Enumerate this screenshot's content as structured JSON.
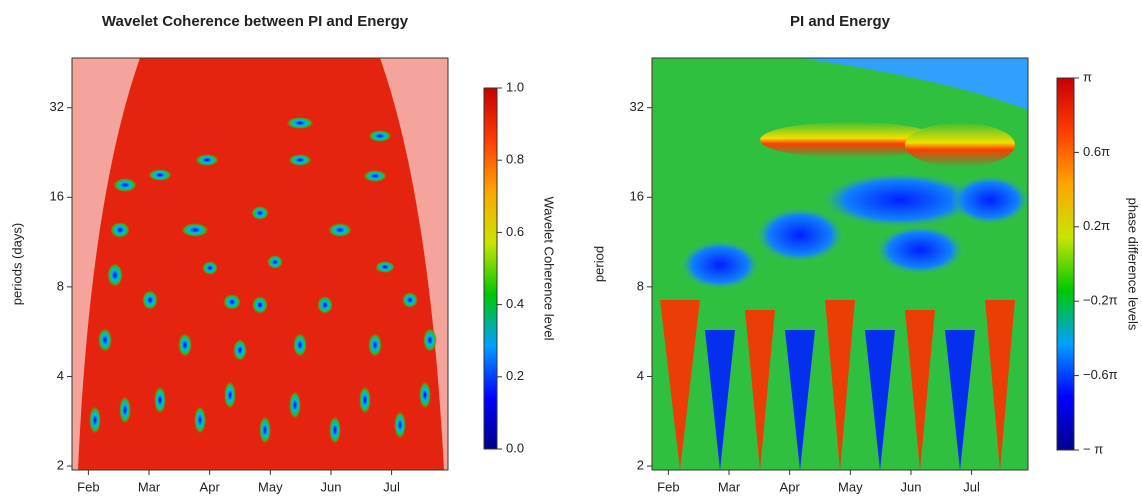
{
  "chart_data": [
    {
      "type": "heatmap",
      "title": "Wavelet Coherence between PI and Energy",
      "y_label": "periods (days)",
      "categories": [
        "Feb",
        "Mar",
        "Apr",
        "May",
        "Jun",
        "Jul"
      ],
      "ylim": [
        1.94,
        47
      ],
      "yticks": [
        2,
        4,
        8,
        16,
        32
      ],
      "log_scale": true,
      "colorbar_label": "Wavelet Coherence level",
      "colorbar_lim": [
        0,
        1
      ],
      "colorbar_ticks": [
        {
          "value": 0,
          "label": "0.0"
        },
        0.2,
        0.4,
        0.6,
        0.8,
        {
          "value": 1,
          "label": "1.0"
        }
      ],
      "colors": [
        "#00008b",
        "#0000ff",
        "#00a0ff",
        "#00c800",
        "#c8e600",
        "#ffa500",
        "#ff3c00",
        "#c80000"
      ]
    },
    {
      "type": "heatmap",
      "title": "PI and Energy",
      "y_label": "period",
      "categories": [
        "Feb",
        "Mar",
        "Apr",
        "May",
        "Jun",
        "Jul"
      ],
      "ylim": [
        1.94,
        47
      ],
      "yticks": [
        2,
        4,
        8,
        16,
        32
      ],
      "log_scale": true,
      "colorbar_label": "phase difference levels",
      "colorbar_lim": [
        -1,
        1
      ],
      "colorbar_ticks": [
        {
          "value": 1,
          "label": "π"
        },
        {
          "value": 0.6,
          "label": "0.6π"
        },
        {
          "value": 0.2,
          "label": "0.2π"
        },
        {
          "value": -0.2,
          "label": "−0.2π"
        },
        {
          "value": -0.6,
          "label": "−0.6π"
        },
        {
          "value": -1,
          "label": "− π"
        }
      ],
      "colors": [
        "#00008b",
        "#0000ff",
        "#00a0ff",
        "#00c800",
        "#c8e600",
        "#ffa500",
        "#ff3c00",
        "#c80000"
      ]
    }
  ]
}
